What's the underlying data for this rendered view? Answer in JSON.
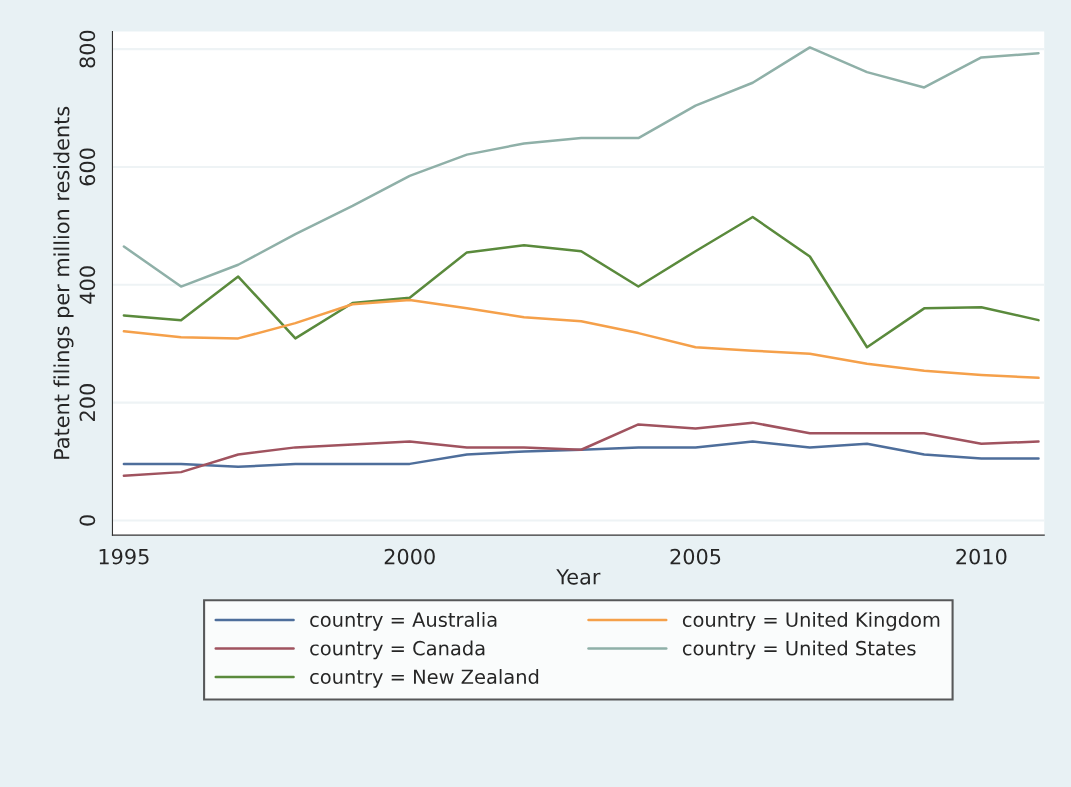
{
  "chart_data": {
    "type": "line",
    "xlabel": "Year",
    "ylabel": "Patent filings per million residents",
    "x": [
      1995,
      1996,
      1997,
      1998,
      1999,
      2000,
      2001,
      2002,
      2003,
      2004,
      2005,
      2006,
      2007,
      2008,
      2009,
      2010,
      2011
    ],
    "series": [
      {
        "name": "country = Australia",
        "color": "#4e6e9b",
        "values": [
          96,
          96,
          91,
          96,
          96,
          96,
          112,
          117,
          120,
          124,
          124,
          134,
          124,
          130,
          112,
          105,
          105
        ]
      },
      {
        "name": "country = Canada",
        "color": "#a0535f",
        "values": [
          76,
          82,
          112,
          124,
          129,
          134,
          124,
          124,
          120,
          163,
          156,
          166,
          148,
          148,
          148,
          130,
          134
        ]
      },
      {
        "name": "country = New Zealand",
        "color": "#5a8a3c",
        "values": [
          348,
          340,
          414,
          309,
          369,
          378,
          455,
          467,
          457,
          397,
          457,
          515,
          448,
          294,
          360,
          362,
          340
        ]
      },
      {
        "name": "country = United Kingdom",
        "color": "#f5a04a",
        "values": [
          321,
          311,
          309,
          335,
          367,
          374,
          360,
          345,
          338,
          318,
          294,
          288,
          283,
          266,
          254,
          247,
          242
        ]
      },
      {
        "name": "country = United States",
        "color": "#8fb0a8",
        "values": [
          465,
          397,
          434,
          486,
          534,
          585,
          621,
          640,
          649,
          649,
          704,
          743,
          803,
          761,
          735,
          786,
          793
        ]
      }
    ],
    "xlim": [
      1994.8,
      2011.1
    ],
    "ylim": [
      -25,
      830
    ],
    "xticks": [
      1995,
      2000,
      2005,
      2010
    ],
    "yticks": [
      0,
      200,
      400,
      600,
      800
    ],
    "grid": "y",
    "legend": "bottom",
    "line_style": "solid",
    "marker": "none"
  }
}
